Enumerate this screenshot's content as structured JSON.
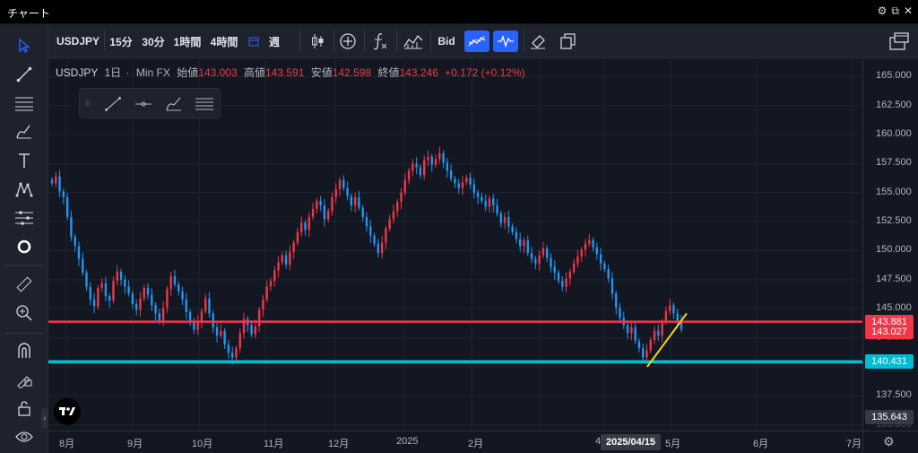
{
  "window": {
    "title": "チャート",
    "controls": [
      "⚙",
      "⧉",
      "✕"
    ]
  },
  "toolbar": {
    "symbol": "USDJPY",
    "intervals": [
      "15分",
      "30分",
      "1時間",
      "4時間"
    ],
    "period_icon": "calendar-icon",
    "period": "週",
    "price_type": "Bid"
  },
  "legend": {
    "symbol": "USDJPY",
    "interval": "1日",
    "source": "Min FX",
    "open_label": "始値",
    "open": "143.003",
    "high_label": "高値",
    "high": "143.591",
    "low_label": "安値",
    "low": "142.598",
    "close_label": "終値",
    "close": "143.246",
    "change": "+0.172 (+0.12%)"
  },
  "price_axis": {
    "labels": [
      "165.000",
      "162.500",
      "160.000",
      "157.500",
      "155.000",
      "152.500",
      "150.000",
      "147.500",
      "145.000",
      "142.500",
      "137.500",
      "135.000"
    ],
    "tags": [
      {
        "text": "143.881",
        "color": "#f23645"
      },
      {
        "text": "143.027",
        "color": "#f23645"
      },
      {
        "text": "140.431",
        "color": "#00bcd4"
      },
      {
        "text": "135.643",
        "color": "#363a45"
      }
    ]
  },
  "time_axis": {
    "labels": [
      "8月",
      "9月",
      "10月",
      "11月",
      "12月",
      "2025",
      "2月",
      "4",
      "5月",
      "6月",
      "7月"
    ],
    "crosshair_date": "2025/04/15"
  },
  "colors": {
    "up": "#f23645",
    "down": "#2196f3",
    "resistance": "#f23645",
    "support": "#00bcd4",
    "trendline": "#f5d31b"
  },
  "chart_data": {
    "type": "candlestick",
    "ylim": [
      134.5,
      166.5
    ],
    "horizontal_lines": [
      143.881,
      140.431
    ],
    "closes": [
      155.8,
      156.4,
      155.1,
      154.6,
      152.9,
      151.2,
      150.4,
      149.3,
      148.1,
      146.9,
      145.8,
      145.2,
      146.8,
      147.2,
      146.1,
      145.7,
      147.4,
      148.2,
      147.5,
      146.9,
      146.3,
      145.4,
      144.9,
      145.9,
      146.8,
      146.2,
      145.3,
      144.6,
      143.9,
      145.1,
      146.7,
      147.8,
      147.1,
      146.5,
      145.8,
      144.7,
      143.8,
      143.2,
      143.9,
      144.8,
      145.9,
      144.6,
      143.4,
      142.7,
      143.1,
      141.9,
      141.2,
      140.8,
      141.6,
      142.9,
      144.1,
      143.6,
      142.8,
      143.5,
      144.9,
      145.8,
      146.9,
      147.4,
      148.3,
      149.0,
      149.6,
      148.8,
      149.9,
      150.7,
      151.6,
      152.4,
      151.8,
      152.9,
      153.6,
      154.3,
      153.9,
      152.7,
      153.4,
      154.6,
      155.3,
      156.1,
      155.4,
      154.7,
      153.9,
      154.6,
      153.7,
      152.9,
      152.1,
      151.3,
      150.6,
      149.8,
      150.7,
      151.9,
      152.7,
      153.4,
      154.2,
      155.0,
      156.1,
      156.9,
      157.5,
      157.2,
      156.5,
      157.8,
      158.1,
      157.4,
      157.9,
      158.4,
      157.6,
      156.9,
      156.2,
      155.8,
      155.4,
      155.9,
      156.3,
      155.7,
      155.0,
      154.6,
      154.3,
      153.8,
      154.5,
      153.9,
      153.2,
      152.4,
      152.9,
      152.1,
      151.6,
      151.0,
      150.4,
      150.9,
      149.8,
      149.3,
      148.9,
      149.6,
      150.2,
      149.4,
      148.6,
      148.1,
      147.4,
      146.9,
      147.6,
      148.2,
      148.9,
      149.5,
      150.1,
      150.6,
      150.9,
      150.3,
      149.7,
      148.9,
      148.4,
      147.6,
      146.3,
      145.1,
      144.2,
      143.6,
      142.9,
      143.4,
      142.2,
      141.6,
      140.8,
      141.4,
      142.3,
      143.1,
      142.7,
      143.9,
      144.8,
      145.3,
      144.6,
      143.9,
      143.2
    ]
  }
}
